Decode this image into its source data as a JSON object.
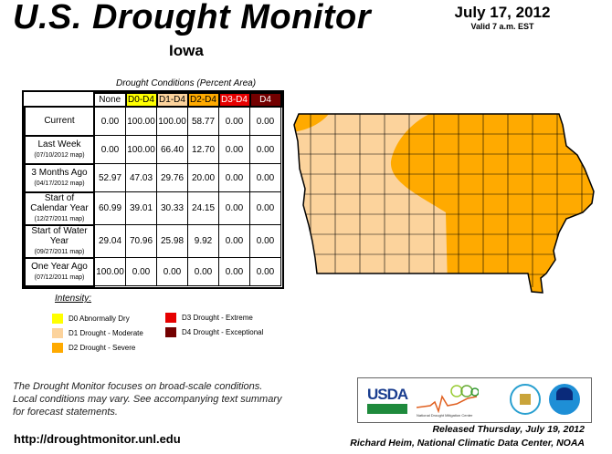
{
  "header": {
    "title": "U.S. Drought Monitor",
    "state": "Iowa",
    "date": "July 17, 2012",
    "valid": "Valid 7 a.m. EST"
  },
  "table": {
    "caption": "Drought Conditions (Percent Area)",
    "columns": [
      {
        "label": "None",
        "color": "#ffffff"
      },
      {
        "label": "D0-D4",
        "color": "#ffff00"
      },
      {
        "label": "D1-D4",
        "color": "#fcd39c"
      },
      {
        "label": "D2-D4",
        "color": "#ffaa00"
      },
      {
        "label": "D3-D4",
        "color": "#e60000"
      },
      {
        "label": "D4",
        "color": "#730000"
      }
    ],
    "rows": [
      {
        "label": "Current",
        "sub": "",
        "values": [
          "0.00",
          "100.00",
          "100.00",
          "58.77",
          "0.00",
          "0.00"
        ]
      },
      {
        "label": "Last Week",
        "sub": "(07/10/2012 map)",
        "values": [
          "0.00",
          "100.00",
          "66.40",
          "12.70",
          "0.00",
          "0.00"
        ]
      },
      {
        "label": "3 Months Ago",
        "sub": "(04/17/2012 map)",
        "values": [
          "52.97",
          "47.03",
          "29.76",
          "20.00",
          "0.00",
          "0.00"
        ]
      },
      {
        "label": "Start of Calendar Year",
        "sub": "(12/27/2011 map)",
        "values": [
          "60.99",
          "39.01",
          "30.33",
          "24.15",
          "0.00",
          "0.00"
        ]
      },
      {
        "label": "Start of Water Year",
        "sub": "(09/27/2011 map)",
        "values": [
          "29.04",
          "70.96",
          "25.98",
          "9.92",
          "0.00",
          "0.00"
        ]
      },
      {
        "label": "One Year Ago",
        "sub": "(07/12/2011 map)",
        "values": [
          "100.00",
          "0.00",
          "0.00",
          "0.00",
          "0.00",
          "0.00"
        ]
      }
    ]
  },
  "legend": {
    "title": "Intensity:",
    "items": [
      {
        "label": "D0 Abnormally Dry",
        "color": "#ffff00"
      },
      {
        "label": "D1 Drought - Moderate",
        "color": "#fcd39c"
      },
      {
        "label": "D2 Drought - Severe",
        "color": "#ffaa00"
      },
      {
        "label": "D3 Drought - Extreme",
        "color": "#e60000"
      },
      {
        "label": "D4 Drought - Exceptional",
        "color": "#730000"
      }
    ]
  },
  "footer": {
    "note": [
      "The Drought Monitor focuses on broad-scale conditions.",
      "Local conditions may vary. See accompanying text summary",
      "for forecast statements."
    ],
    "url": "http://droughtmonitor.unl.edu",
    "released": "Released Thursday, July 19, 2012",
    "author": "Richard Heim, National Climatic Data Center, NOAA",
    "logos": {
      "usda": "USDA",
      "ndmc": "National Drought Mitigation Center"
    }
  }
}
